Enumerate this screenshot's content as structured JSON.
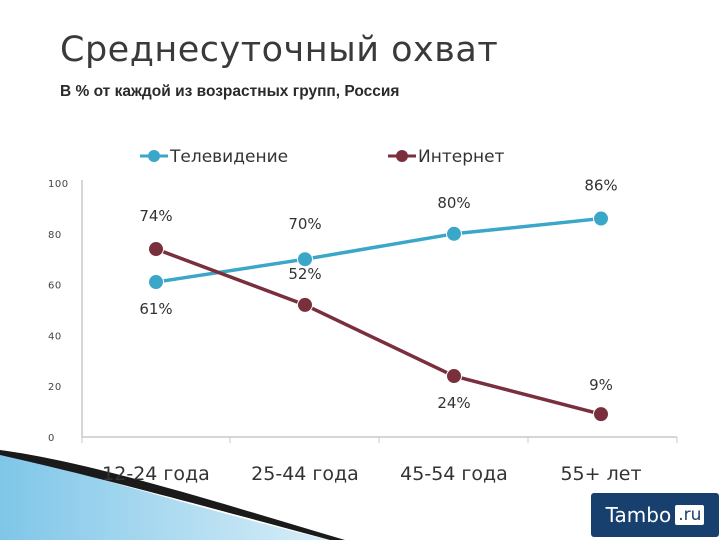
{
  "title": "Среднесуточный охват",
  "subtitle": "В % от каждой из возрастных групп, Россия",
  "watermark": {
    "brand": "Tambo",
    "suffix": ".ru"
  },
  "chart_data": {
    "type": "line",
    "categories": [
      "12-24 года",
      "25-44 года",
      "45-54 года",
      "55+ лет"
    ],
    "series": [
      {
        "name": "Телевидение",
        "values": [
          61,
          70,
          80,
          86
        ],
        "labels": [
          "61%",
          "70%",
          "80%",
          "86%"
        ],
        "color": "#3aa6c8"
      },
      {
        "name": "Интернет",
        "values": [
          74,
          52,
          24,
          9
        ],
        "labels": [
          "74%",
          "52%",
          "24%",
          "9%"
        ],
        "color": "#7a2f3c"
      }
    ],
    "yticks": [
      "0",
      "20",
      "40",
      "60",
      "80",
      "100"
    ],
    "ylim": [
      0,
      100
    ],
    "grid": false,
    "legend": "top"
  }
}
